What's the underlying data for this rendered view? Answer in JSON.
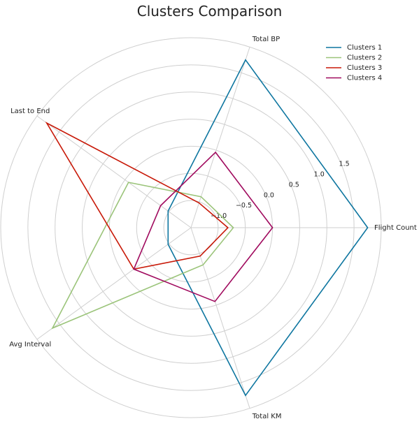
{
  "chart_data": {
    "type": "radar",
    "title": "Clusters Comparison",
    "axes": [
      "Flight Count",
      "Total BP",
      "Last to End",
      "Avg Interval",
      "Total KM"
    ],
    "rlim": [
      -1.5,
      2.0
    ],
    "rticks": [
      -1.0,
      -0.5,
      0.0,
      0.5,
      1.0,
      1.5
    ],
    "rtick_labels": [
      "−1.0",
      "−0.5",
      "0.0",
      "0.5",
      "1.0",
      "1.5"
    ],
    "grid": true,
    "legend_position": "top-right",
    "series": [
      {
        "name": "Clusters 1",
        "color": "#0e76a0",
        "values": [
          1.75,
          1.75,
          -0.98,
          -0.98,
          1.75
        ]
      },
      {
        "name": "Clusters 2",
        "color": "#9bc47a",
        "values": [
          -0.72,
          -0.9,
          -0.08,
          1.65,
          -0.78
        ]
      },
      {
        "name": "Clusters 3",
        "color": "#c81908",
        "values": [
          -0.82,
          -1.02,
          1.78,
          -0.2,
          -0.95
        ]
      },
      {
        "name": "Clusters 4",
        "color": "#a00a5e",
        "values": [
          0.0,
          -0.04,
          -0.81,
          -0.2,
          -0.07
        ]
      }
    ]
  }
}
